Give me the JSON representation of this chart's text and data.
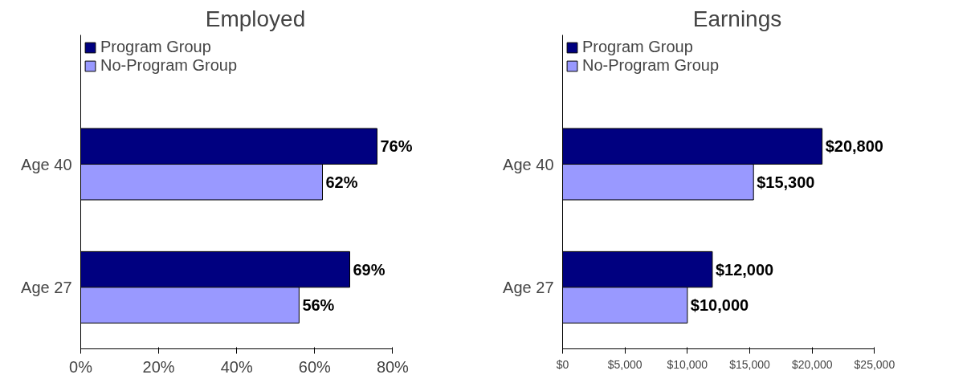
{
  "chart_data": [
    {
      "type": "bar",
      "orientation": "horizontal",
      "title": "Employed",
      "categories": [
        "Age 40",
        "Age 27"
      ],
      "legend": "top",
      "grid": false,
      "xlim": [
        0,
        80
      ],
      "xticks": [
        {
          "value": 0,
          "label": "0%"
        },
        {
          "value": 20,
          "label": "20%"
        },
        {
          "value": 40,
          "label": "40%"
        },
        {
          "value": 60,
          "label": "60%"
        },
        {
          "value": 80,
          "label": "80%"
        }
      ],
      "series": [
        {
          "name": "Program Group",
          "color": "#000080",
          "values": [
            76,
            69
          ],
          "value_labels": [
            "76%",
            "69%"
          ]
        },
        {
          "name": "No-Program Group",
          "color": "#9999ff",
          "values": [
            62,
            56
          ],
          "value_labels": [
            "62%",
            "56%"
          ]
        }
      ]
    },
    {
      "type": "bar",
      "orientation": "horizontal",
      "title": "Earnings",
      "categories": [
        "Age 40",
        "Age 27"
      ],
      "legend": "top",
      "grid": false,
      "xlim": [
        0,
        25000
      ],
      "xticks": [
        {
          "value": 0,
          "label": "$0"
        },
        {
          "value": 5000,
          "label": "$5,000"
        },
        {
          "value": 10000,
          "label": "$10,000"
        },
        {
          "value": 15000,
          "label": "$15,000"
        },
        {
          "value": 20000,
          "label": "$20,000"
        },
        {
          "value": 25000,
          "label": "$25,000"
        }
      ],
      "series": [
        {
          "name": "Program Group",
          "color": "#000080",
          "values": [
            20800,
            12000
          ],
          "value_labels": [
            "$20,800",
            "$12,000"
          ]
        },
        {
          "name": "No-Program Group",
          "color": "#9999ff",
          "values": [
            15300,
            10000
          ],
          "value_labels": [
            "$15,300",
            "$10,000"
          ]
        }
      ]
    }
  ]
}
